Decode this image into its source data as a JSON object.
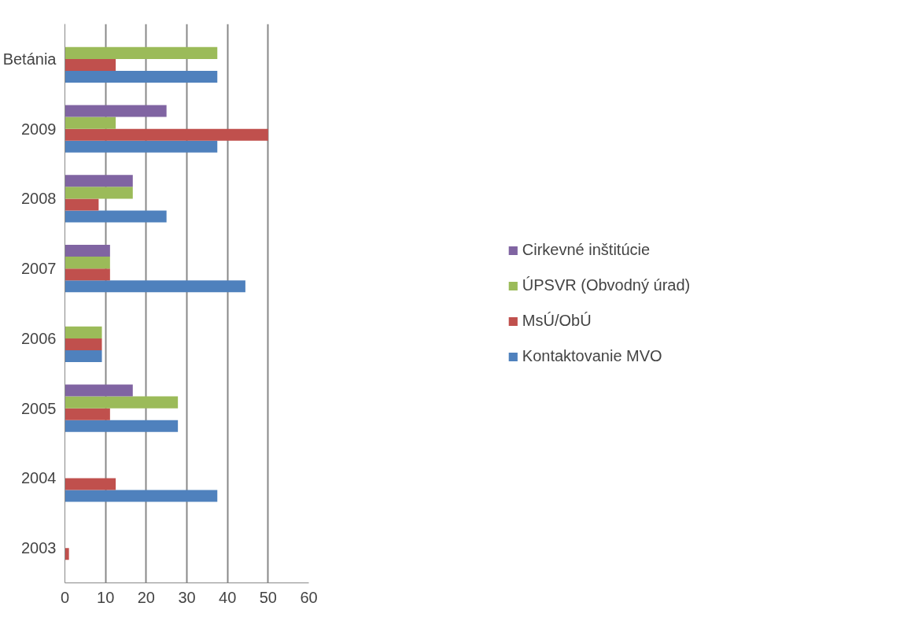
{
  "chart_data": {
    "type": "bar",
    "orientation": "horizontal",
    "categories": [
      "Betánia",
      "2009",
      "2008",
      "2007",
      "2006",
      "2005",
      "2004",
      "2003"
    ],
    "series": [
      {
        "name": "Kontaktovanie MVO",
        "color": "#4f81bd",
        "values": [
          37.5,
          37.5,
          25,
          44.4,
          9.1,
          27.8,
          37.5,
          null
        ]
      },
      {
        "name": "MsÚ/ObÚ",
        "color": "#c0504d",
        "values": [
          12.5,
          50,
          8.3,
          11.1,
          9.1,
          11.1,
          12.5,
          1
        ]
      },
      {
        "name": "ÚPSVR (Obvodný úrad)",
        "color": "#9bbb59",
        "values": [
          37.5,
          12.5,
          16.7,
          11.1,
          9.1,
          27.8,
          null,
          null
        ]
      },
      {
        "name": "Cirkevné inštitúcie",
        "color": "#8064a2",
        "values": [
          null,
          25,
          16.7,
          11.1,
          null,
          16.7,
          null,
          null
        ]
      }
    ],
    "xlim": [
      0,
      60
    ],
    "xticks": [
      0,
      10,
      20,
      30,
      40,
      50,
      60
    ],
    "grid": "x",
    "legend": "right"
  }
}
